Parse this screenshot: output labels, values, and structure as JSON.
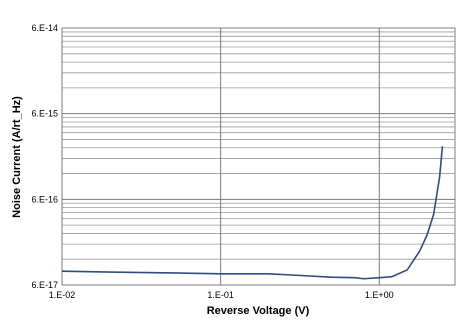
{
  "chart_data": {
    "type": "line",
    "title": "",
    "xlabel": "Reverse Voltage (V)",
    "ylabel": "Noise Current (A/rt_Hz)",
    "x_scale": "log",
    "y_scale": "log",
    "xlim": [
      0.01,
      3.0
    ],
    "ylim": [
      6e-17,
      6e-14
    ],
    "x_tick_labels": [
      "1.E-02",
      "1.E-01",
      "1.E+00"
    ],
    "x_tick_values": [
      0.01,
      0.1,
      1.0
    ],
    "y_tick_labels": [
      "6.E-17",
      "6.E-16",
      "6.E-15",
      "6.E-14"
    ],
    "y_tick_values": [
      6e-17,
      6e-16,
      6e-15,
      6e-14
    ],
    "grid": true,
    "line_color": "#2f4d7e",
    "grid_color": "#9a9a9a",
    "series": [
      {
        "x": [
          0.01,
          0.02,
          0.05,
          0.1,
          0.2,
          0.3,
          0.5,
          0.7,
          0.8,
          1.0,
          1.2,
          1.5,
          1.8,
          2.0,
          2.2,
          2.4,
          2.5
        ],
        "y": [
          8.7e-17,
          8.5e-17,
          8.3e-17,
          8.1e-17,
          8.1e-17,
          7.8e-17,
          7.4e-17,
          7.3e-17,
          7.1e-17,
          7.3e-17,
          7.5e-17,
          9e-17,
          1.5e-16,
          2.3e-16,
          4e-16,
          1.1e-15,
          2.5e-15
        ]
      }
    ]
  }
}
